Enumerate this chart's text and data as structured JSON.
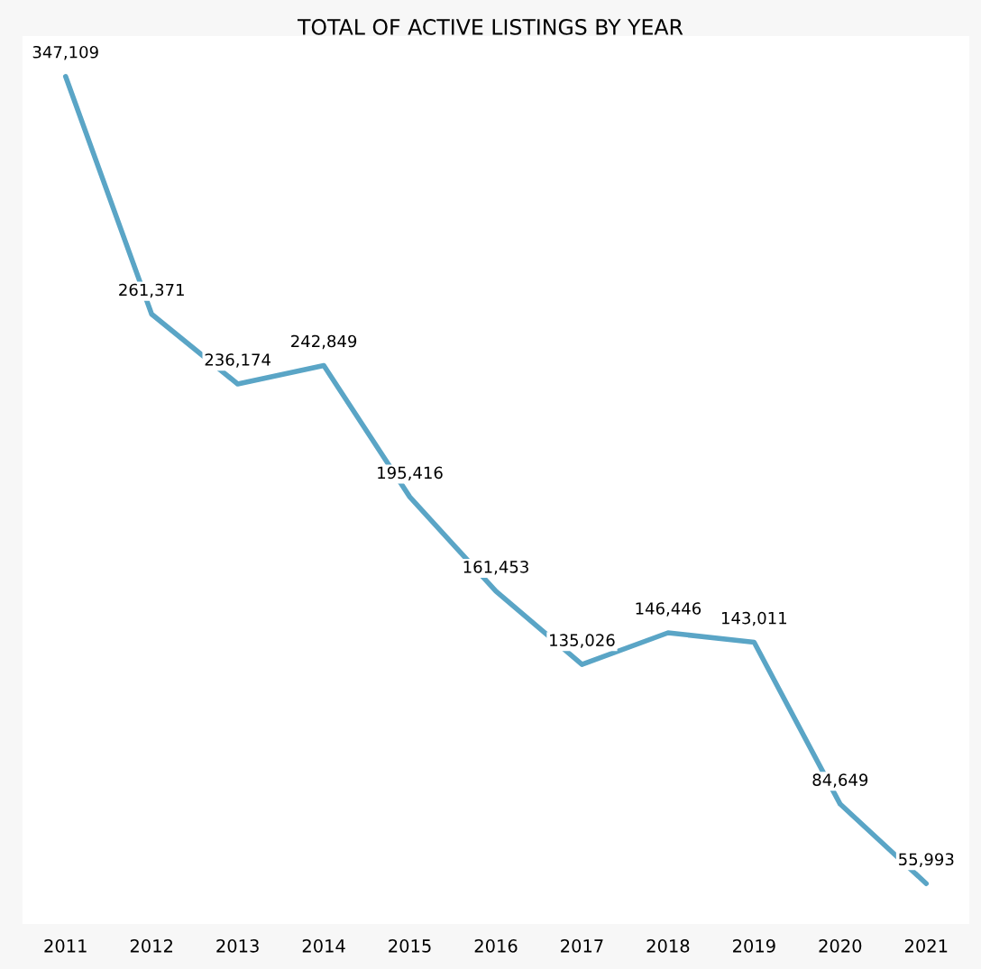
{
  "chart_data": {
    "type": "line",
    "title": "TOTAL OF ACTIVE LISTINGS BY YEAR",
    "categories": [
      "2011",
      "2012",
      "2013",
      "2014",
      "2015",
      "2016",
      "2017",
      "2018",
      "2019",
      "2020",
      "2021"
    ],
    "series": [
      {
        "color": "#5aa5c6",
        "values": [
          347109,
          261371,
          236174,
          242849,
          195416,
          161453,
          135026,
          146446,
          143011,
          84649,
          55993
        ],
        "value_labels": [
          "347,109",
          "261,371",
          "236,174",
          "242,849",
          "195,416",
          "161,453",
          "135,026",
          "146,446",
          "143,011",
          "84,649",
          "55,993"
        ]
      }
    ],
    "tick_labels": "x",
    "grid": false,
    "marker": "none",
    "line_style": "solid"
  }
}
